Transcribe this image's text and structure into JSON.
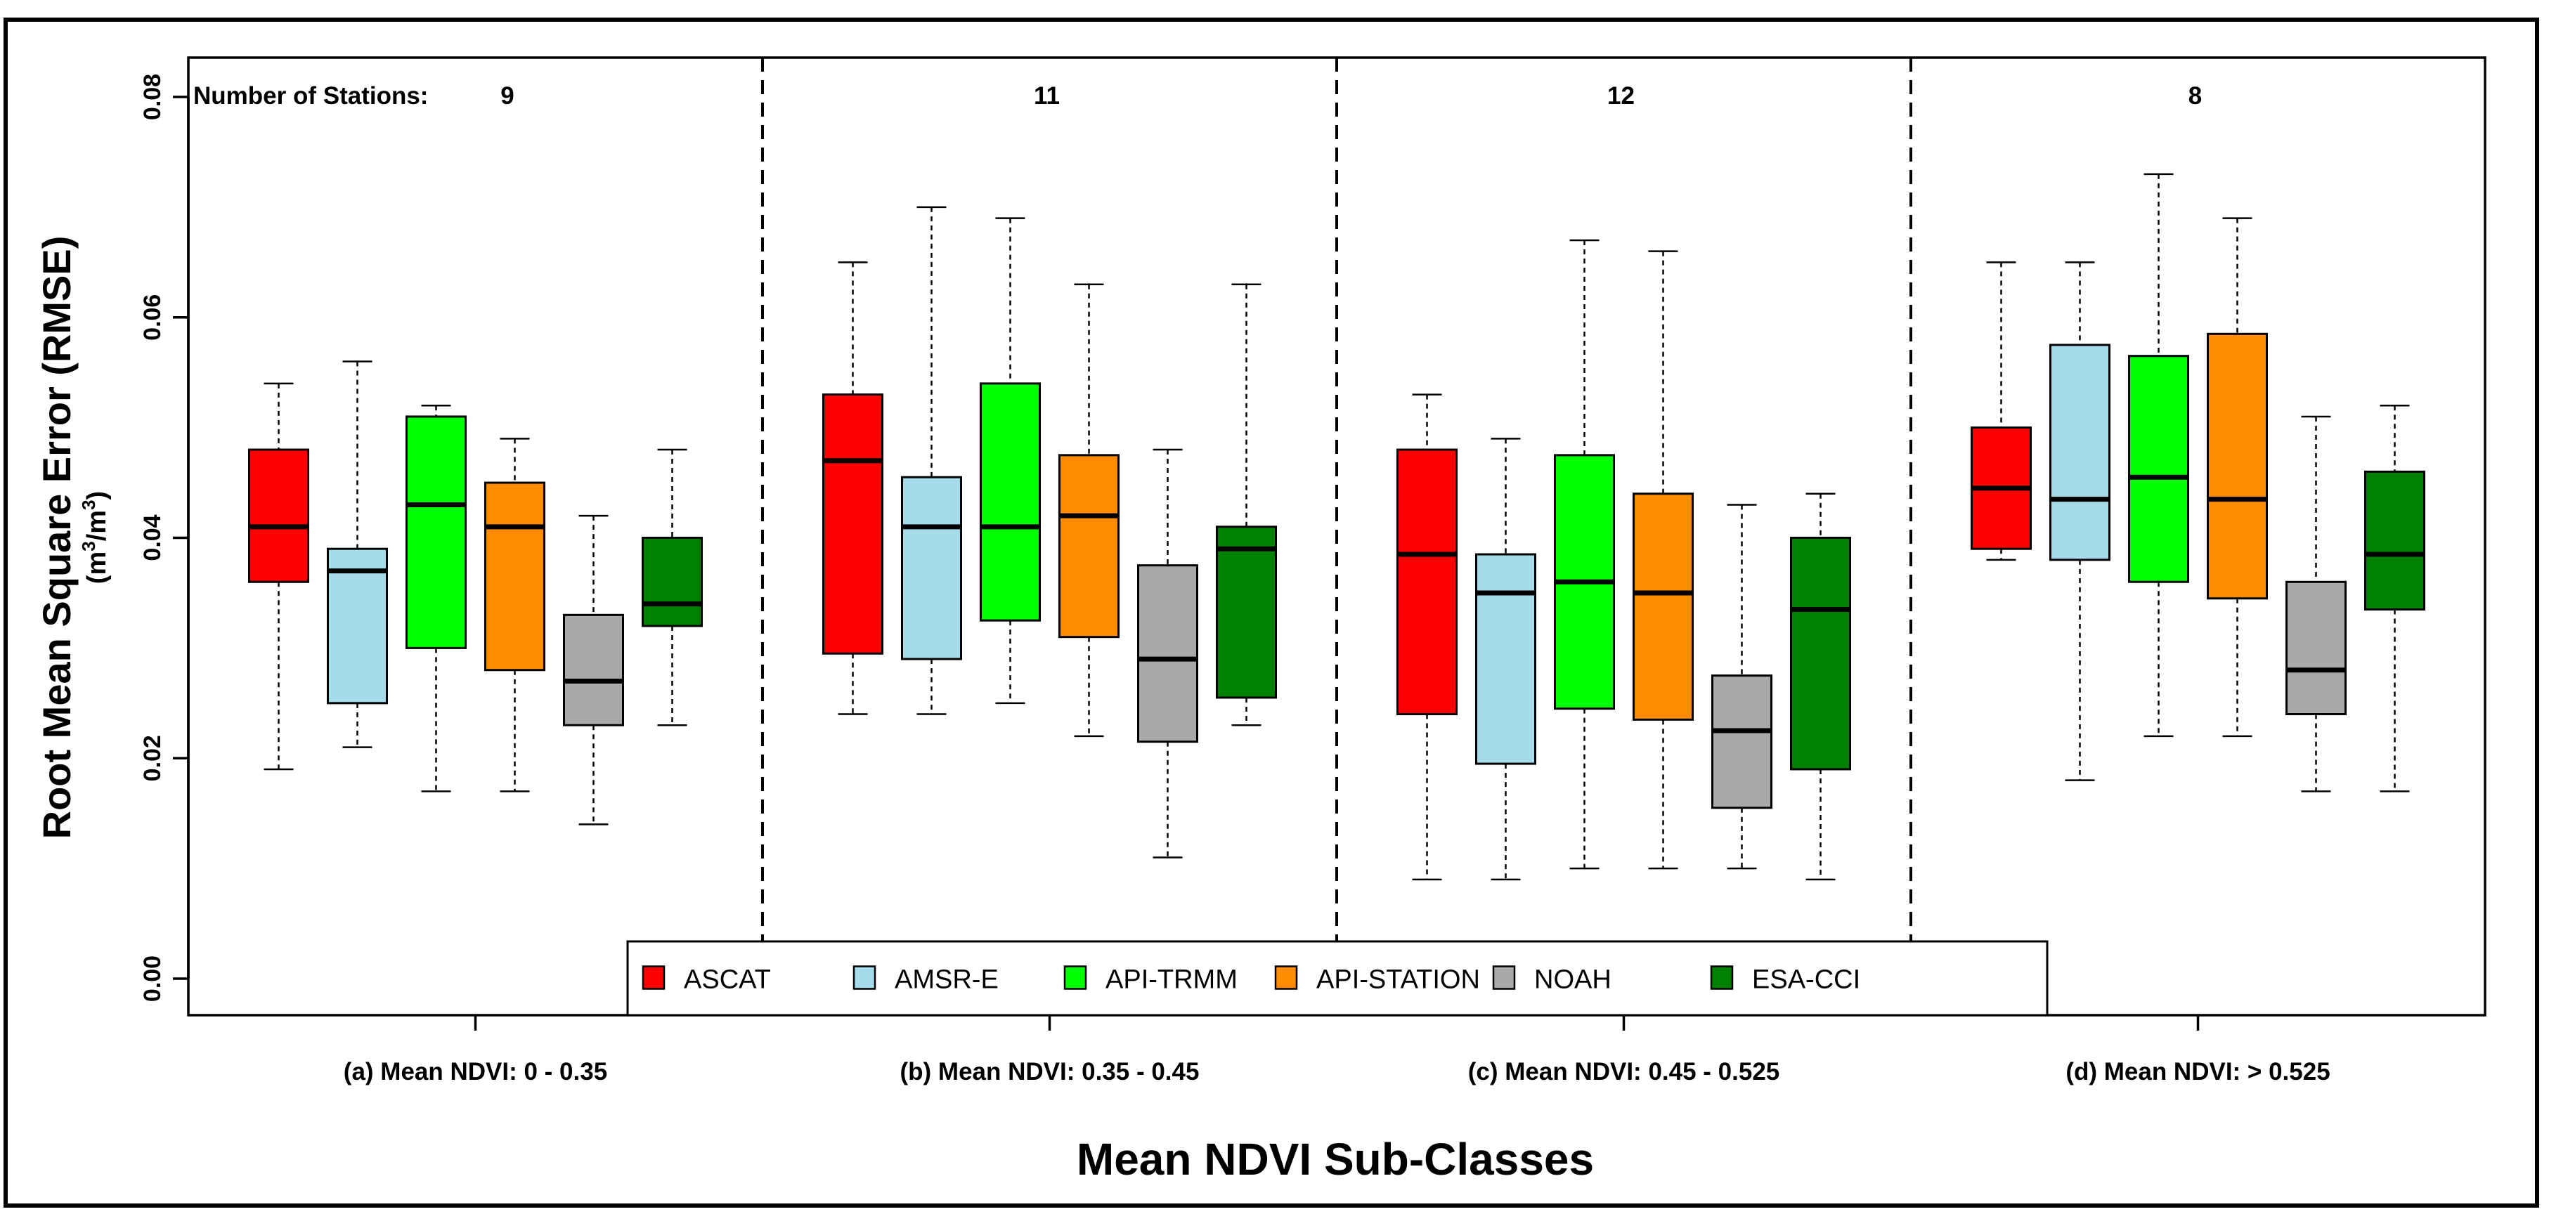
{
  "chart_data": {
    "type": "boxplot",
    "title": "",
    "xlabel": "Mean NDVI Sub-Classes",
    "ylabel": "Root Mean Square Error (RMSE)",
    "yunit_base": "(m",
    "yunit_sup1": "3",
    "yunit_mid": "/m",
    "yunit_sup2": "3",
    "yunit_close": ")",
    "ylim": [
      0,
      0.083
    ],
    "yticks": [
      {
        "value": 0.0,
        "label": "0.00"
      },
      {
        "value": 0.02,
        "label": "0.02"
      },
      {
        "value": 0.04,
        "label": "0.04"
      },
      {
        "value": 0.06,
        "label": "0.06"
      },
      {
        "value": 0.08,
        "label": "0.08"
      }
    ],
    "station_prefix": "Number of Stations:",
    "series": [
      {
        "name": "ASCAT",
        "color": "#ff0000"
      },
      {
        "name": "AMSR-E",
        "color": "#a6dbea"
      },
      {
        "name": "API-TRMM",
        "color": "#00ff00"
      },
      {
        "name": "API-STATION",
        "color": "#ff8c00"
      },
      {
        "name": "NOAH",
        "color": "#a9a9a9"
      },
      {
        "name": "ESA-CCI",
        "color": "#008000"
      }
    ],
    "groups": [
      {
        "label": "(a) Mean NDVI: 0 - 0.35",
        "stations": "9",
        "boxes": [
          {
            "series": "ASCAT",
            "whislo": 0.019,
            "q1": 0.036,
            "median": 0.041,
            "q3": 0.048,
            "whishi": 0.054
          },
          {
            "series": "AMSR-E",
            "whislo": 0.021,
            "q1": 0.025,
            "median": 0.037,
            "q3": 0.039,
            "whishi": 0.056
          },
          {
            "series": "API-TRMM",
            "whislo": 0.017,
            "q1": 0.03,
            "median": 0.043,
            "q3": 0.051,
            "whishi": 0.052
          },
          {
            "series": "API-STATION",
            "whislo": 0.017,
            "q1": 0.028,
            "median": 0.041,
            "q3": 0.045,
            "whishi": 0.049
          },
          {
            "series": "NOAH",
            "whislo": 0.014,
            "q1": 0.023,
            "median": 0.027,
            "q3": 0.033,
            "whishi": 0.042
          },
          {
            "series": "ESA-CCI",
            "whislo": 0.023,
            "q1": 0.032,
            "median": 0.034,
            "q3": 0.04,
            "whishi": 0.048
          }
        ]
      },
      {
        "label": "(b) Mean NDVI: 0.35 - 0.45",
        "stations": "11",
        "boxes": [
          {
            "series": "ASCAT",
            "whislo": 0.024,
            "q1": 0.0295,
            "median": 0.047,
            "q3": 0.053,
            "whishi": 0.065
          },
          {
            "series": "AMSR-E",
            "whislo": 0.024,
            "q1": 0.029,
            "median": 0.041,
            "q3": 0.0455,
            "whishi": 0.07
          },
          {
            "series": "API-TRMM",
            "whislo": 0.025,
            "q1": 0.0325,
            "median": 0.041,
            "q3": 0.054,
            "whishi": 0.069
          },
          {
            "series": "API-STATION",
            "whislo": 0.022,
            "q1": 0.031,
            "median": 0.042,
            "q3": 0.0475,
            "whishi": 0.063
          },
          {
            "series": "NOAH",
            "whislo": 0.011,
            "q1": 0.0215,
            "median": 0.029,
            "q3": 0.0375,
            "whishi": 0.048
          },
          {
            "series": "ESA-CCI",
            "whislo": 0.023,
            "q1": 0.0255,
            "median": 0.039,
            "q3": 0.041,
            "whishi": 0.063
          }
        ]
      },
      {
        "label": "(c) Mean NDVI: 0.45 - 0.525",
        "stations": "12",
        "boxes": [
          {
            "series": "ASCAT",
            "whislo": 0.009,
            "q1": 0.024,
            "median": 0.0385,
            "q3": 0.048,
            "whishi": 0.053
          },
          {
            "series": "AMSR-E",
            "whislo": 0.009,
            "q1": 0.0195,
            "median": 0.035,
            "q3": 0.0385,
            "whishi": 0.049
          },
          {
            "series": "API-TRMM",
            "whislo": 0.01,
            "q1": 0.0245,
            "median": 0.036,
            "q3": 0.0475,
            "whishi": 0.067
          },
          {
            "series": "API-STATION",
            "whislo": 0.01,
            "q1": 0.0235,
            "median": 0.035,
            "q3": 0.044,
            "whishi": 0.066
          },
          {
            "series": "NOAH",
            "whislo": 0.01,
            "q1": 0.0155,
            "median": 0.0225,
            "q3": 0.0275,
            "whishi": 0.043
          },
          {
            "series": "ESA-CCI",
            "whislo": 0.009,
            "q1": 0.019,
            "median": 0.0335,
            "q3": 0.04,
            "whishi": 0.044
          }
        ]
      },
      {
        "label": "(d) Mean NDVI: > 0.525",
        "stations": "8",
        "boxes": [
          {
            "series": "ASCAT",
            "whislo": 0.038,
            "q1": 0.039,
            "median": 0.0445,
            "q3": 0.05,
            "whishi": 0.065
          },
          {
            "series": "AMSR-E",
            "whislo": 0.018,
            "q1": 0.038,
            "median": 0.0435,
            "q3": 0.0575,
            "whishi": 0.065
          },
          {
            "series": "API-TRMM",
            "whislo": 0.022,
            "q1": 0.036,
            "median": 0.0455,
            "q3": 0.0565,
            "whishi": 0.073
          },
          {
            "series": "API-STATION",
            "whislo": 0.022,
            "q1": 0.0345,
            "median": 0.0435,
            "q3": 0.0585,
            "whishi": 0.069
          },
          {
            "series": "NOAH",
            "whislo": 0.017,
            "q1": 0.024,
            "median": 0.028,
            "q3": 0.036,
            "whishi": 0.051
          },
          {
            "series": "ESA-CCI",
            "whislo": 0.017,
            "q1": 0.0335,
            "median": 0.0385,
            "q3": 0.046,
            "whishi": 0.052
          }
        ]
      }
    ],
    "legend_position": "bottom-center"
  }
}
